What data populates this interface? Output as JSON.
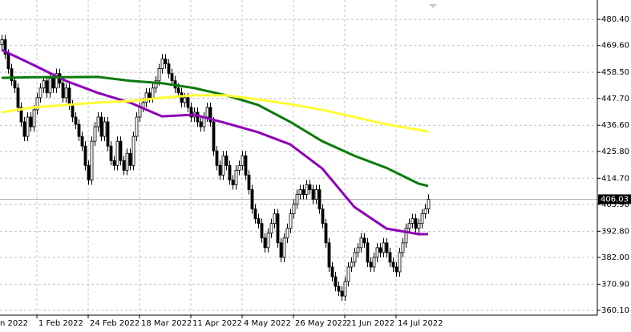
{
  "chart_data": {
    "type": "candlestick",
    "categories": [
      "n 2022",
      null,
      null,
      null,
      null,
      null,
      null,
      null,
      null,
      null,
      null,
      "1 Feb 2022",
      null,
      null,
      null,
      null,
      null,
      null,
      null,
      null,
      null,
      null,
      null,
      null,
      null,
      null,
      null,
      "24 Feb 2022",
      null,
      null,
      null,
      null,
      null,
      null,
      null,
      null,
      null,
      null,
      null,
      null,
      null,
      null,
      null,
      "18 Mar 2022",
      null,
      null,
      null,
      null,
      null,
      null,
      null,
      null,
      null,
      null,
      null,
      null,
      null,
      null,
      null,
      "11 Apr 2022",
      null,
      null,
      null,
      null,
      null,
      null,
      null,
      null,
      null,
      null,
      null,
      null,
      null,
      null,
      null,
      "4 May 2022",
      null,
      null,
      null,
      null,
      null,
      null,
      null,
      null,
      null,
      null,
      null,
      null,
      null,
      null,
      null,
      "26 May 2022",
      null,
      null,
      null,
      null,
      null,
      null,
      null,
      null,
      null,
      null,
      null,
      null,
      null,
      null,
      null,
      "21 Jun 2022",
      null,
      null,
      null,
      null,
      null,
      null,
      null,
      null,
      null,
      null,
      null,
      null,
      null,
      null,
      null,
      "14 Jul 2022",
      null,
      null,
      null,
      null,
      null,
      null,
      null,
      null,
      null,
      null
    ],
    "open": [
      470,
      472,
      466,
      460,
      455,
      452,
      444,
      438,
      432,
      440,
      436,
      443,
      448,
      452,
      455,
      450,
      456,
      452,
      458,
      454,
      448,
      452,
      445,
      440,
      437,
      432,
      428,
      420,
      414,
      430,
      436,
      440,
      432,
      438,
      428,
      422,
      420,
      430,
      422,
      418,
      425,
      420,
      432,
      440,
      444,
      446,
      450,
      448,
      452,
      455,
      460,
      464,
      462,
      458,
      455,
      452,
      450,
      446,
      448,
      444,
      440,
      442,
      438,
      436,
      440,
      444,
      438,
      426,
      420,
      416,
      424,
      420,
      414,
      412,
      418,
      420,
      424,
      416,
      410,
      402,
      398,
      396,
      390,
      386,
      392,
      396,
      400,
      388,
      382,
      390,
      394,
      400,
      404,
      408,
      410,
      408,
      412,
      410,
      406,
      410,
      402,
      396,
      388,
      378,
      374,
      370,
      368,
      366,
      372,
      378,
      380,
      384,
      386,
      390,
      388,
      380,
      378,
      382,
      386,
      384,
      388,
      384,
      380,
      378,
      376,
      384,
      388,
      394,
      396,
      398,
      394,
      396,
      400,
      402
    ],
    "high": [
      474,
      474,
      468,
      462,
      457,
      454,
      446,
      440,
      442,
      442,
      445,
      450,
      454,
      457,
      457,
      458,
      458,
      460,
      460,
      456,
      454,
      454,
      447,
      442,
      439,
      434,
      430,
      422,
      432,
      438,
      442,
      442,
      440,
      440,
      430,
      424,
      432,
      432,
      424,
      427,
      427,
      434,
      442,
      446,
      448,
      452,
      452,
      454,
      457,
      462,
      466,
      466,
      464,
      460,
      457,
      454,
      452,
      450,
      450,
      446,
      444,
      444,
      440,
      442,
      446,
      446,
      440,
      428,
      422,
      426,
      426,
      422,
      416,
      420,
      422,
      426,
      426,
      418,
      412,
      404,
      400,
      398,
      392,
      394,
      398,
      402,
      402,
      390,
      392,
      396,
      402,
      406,
      410,
      412,
      412,
      414,
      414,
      412,
      412,
      412,
      404,
      398,
      390,
      380,
      376,
      372,
      370,
      374,
      380,
      382,
      386,
      388,
      392,
      392,
      390,
      382,
      384,
      388,
      388,
      390,
      390,
      386,
      382,
      380,
      386,
      390,
      396,
      398,
      400,
      400,
      398,
      402,
      404,
      408.03
    ],
    "low": [
      468,
      464,
      458,
      453,
      450,
      442,
      436,
      430,
      430,
      434,
      434,
      441,
      446,
      450,
      448,
      448,
      450,
      450,
      452,
      446,
      446,
      443,
      438,
      435,
      430,
      426,
      418,
      412,
      412,
      428,
      434,
      430,
      430,
      426,
      420,
      418,
      418,
      420,
      416,
      416,
      418,
      418,
      430,
      438,
      442,
      444,
      446,
      446,
      450,
      453,
      458,
      460,
      456,
      453,
      450,
      448,
      444,
      444,
      442,
      438,
      438,
      436,
      434,
      434,
      438,
      436,
      424,
      418,
      414,
      414,
      418,
      412,
      410,
      410,
      416,
      418,
      414,
      408,
      400,
      396,
      394,
      388,
      384,
      384,
      390,
      394,
      386,
      380,
      380,
      388,
      392,
      398,
      402,
      406,
      406,
      406,
      408,
      404,
      404,
      400,
      394,
      386,
      376,
      372,
      368,
      366,
      364,
      364,
      370,
      376,
      378,
      382,
      384,
      386,
      378,
      376,
      376,
      380,
      382,
      382,
      382,
      378,
      376,
      374,
      374,
      382,
      386,
      392,
      394,
      392,
      392,
      394,
      398,
      400
    ],
    "close": [
      472,
      466,
      460,
      455,
      452,
      444,
      438,
      432,
      440,
      436,
      443,
      448,
      452,
      455,
      450,
      456,
      452,
      458,
      454,
      448,
      452,
      445,
      440,
      437,
      432,
      428,
      420,
      414,
      430,
      436,
      440,
      432,
      438,
      428,
      422,
      420,
      430,
      422,
      418,
      425,
      420,
      432,
      440,
      444,
      446,
      450,
      448,
      452,
      455,
      460,
      464,
      462,
      458,
      455,
      452,
      450,
      446,
      448,
      444,
      440,
      442,
      438,
      436,
      440,
      444,
      438,
      426,
      420,
      416,
      424,
      420,
      414,
      412,
      418,
      420,
      424,
      416,
      410,
      402,
      398,
      396,
      390,
      386,
      392,
      396,
      400,
      388,
      382,
      390,
      394,
      400,
      404,
      408,
      410,
      408,
      412,
      410,
      406,
      410,
      402,
      396,
      388,
      378,
      374,
      370,
      368,
      366,
      372,
      378,
      380,
      384,
      386,
      390,
      388,
      380,
      378,
      382,
      386,
      384,
      388,
      384,
      380,
      378,
      376,
      384,
      388,
      394,
      396,
      398,
      394,
      396,
      400,
      402,
      406.03
    ],
    "lines": [
      {
        "color": "#8e00b8",
        "x": [
          0,
          10,
          20,
          30,
          40,
          50,
          60,
          70,
          80,
          90,
          100,
          110,
          120,
          130,
          133
        ],
        "values": [
          467.8,
          461.5,
          455,
          450,
          446,
          440.3,
          441,
          437.5,
          433.7,
          428.7,
          418.7,
          402.8,
          393.9,
          391.6,
          391.6
        ]
      },
      {
        "color": "#0b7a0b",
        "x": [
          0,
          10,
          20,
          30,
          40,
          50,
          60,
          70,
          80,
          90,
          100,
          110,
          120,
          130,
          133
        ],
        "values": [
          456.2,
          456.5,
          456.5,
          456.6,
          455,
          454,
          452,
          449,
          445,
          438,
          430,
          424,
          419,
          412.5,
          411.5
        ]
      },
      {
        "color": "#ffff33",
        "x": [
          0,
          10,
          20,
          30,
          40,
          50,
          60,
          70,
          80,
          90,
          100,
          110,
          120,
          130,
          133
        ],
        "values": [
          442,
          444,
          445,
          446,
          446.6,
          448,
          449,
          449,
          447.3,
          445.3,
          443,
          440,
          437,
          434.7,
          434
        ]
      }
    ],
    "ylim": [
      358.1,
      488.4
    ],
    "yticks": [
      {
        "value": 360.1,
        "label": "360.10"
      },
      {
        "value": 370.9,
        "label": "370.90"
      },
      {
        "value": 382,
        "label": "382.00"
      },
      {
        "value": 392.8,
        "label": "392.80"
      },
      {
        "value": 403.9,
        "label": "403.90"
      },
      {
        "value": 414.7,
        "label": "414.70"
      },
      {
        "value": 425.8,
        "label": "425.80"
      },
      {
        "value": 436.6,
        "label": "436.60"
      },
      {
        "value": 447.7,
        "label": "447.70"
      },
      {
        "value": 458.5,
        "label": "458.50"
      },
      {
        "value": 469.6,
        "label": "469.60"
      },
      {
        "value": 480.4,
        "label": "480.40"
      }
    ],
    "current_price": {
      "value": 406.03,
      "label": "406.03"
    },
    "grid": true
  }
}
